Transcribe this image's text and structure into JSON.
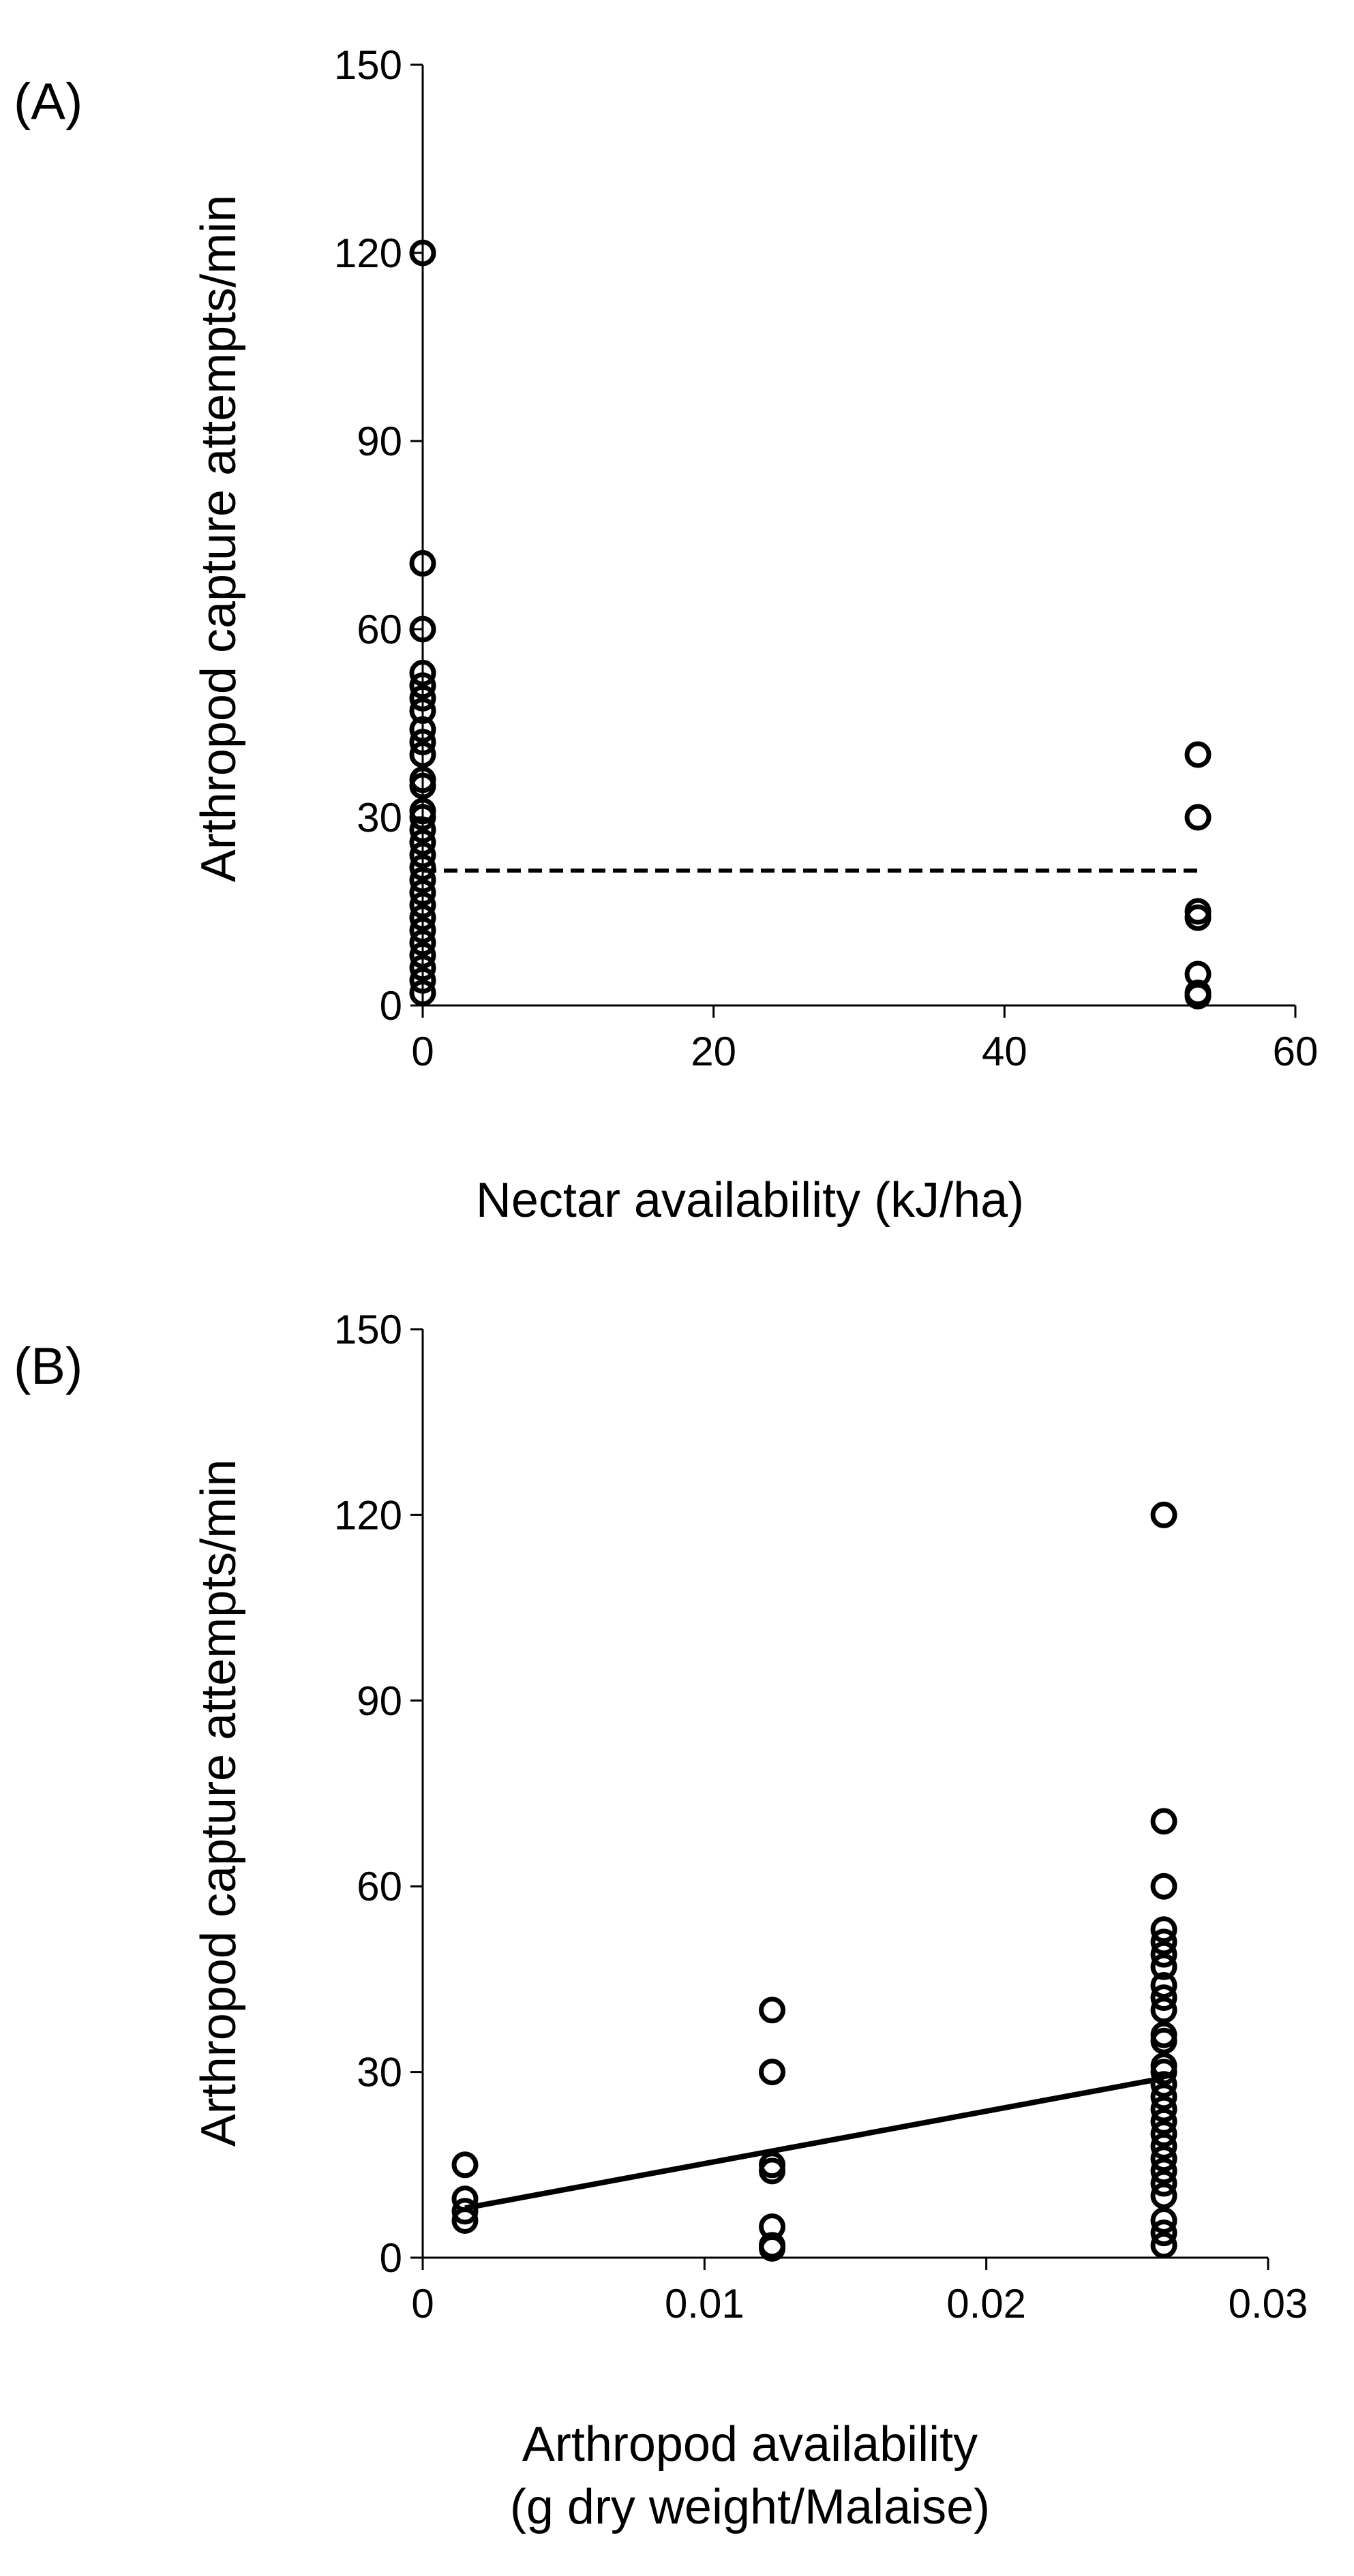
{
  "chart_data": [
    {
      "type": "scatter",
      "panel_label": "(A)",
      "xlabel": "Nectar availability (kJ/ha)",
      "ylabel": "Arthropod capture attempts/min",
      "xlim": [
        0,
        60
      ],
      "ylim": [
        0,
        150
      ],
      "xticks": [
        0,
        20,
        40,
        60
      ],
      "yticks": [
        0,
        30,
        60,
        90,
        120,
        150
      ],
      "grid": false,
      "series": [
        {
          "marker": "open-circle",
          "points": [
            {
              "x": 0,
              "y": 120
            },
            {
              "x": 0,
              "y": 70.5
            },
            {
              "x": 0,
              "y": 60
            },
            {
              "x": 0,
              "y": 53
            },
            {
              "x": 0,
              "y": 51
            },
            {
              "x": 0,
              "y": 49
            },
            {
              "x": 0,
              "y": 47
            },
            {
              "x": 0,
              "y": 44
            },
            {
              "x": 0,
              "y": 42
            },
            {
              "x": 0,
              "y": 40
            },
            {
              "x": 0,
              "y": 36
            },
            {
              "x": 0,
              "y": 35
            },
            {
              "x": 0,
              "y": 31
            },
            {
              "x": 0,
              "y": 30
            },
            {
              "x": 0,
              "y": 28
            },
            {
              "x": 0,
              "y": 26
            },
            {
              "x": 0,
              "y": 24
            },
            {
              "x": 0,
              "y": 22
            },
            {
              "x": 0,
              "y": 20
            },
            {
              "x": 0,
              "y": 18
            },
            {
              "x": 0,
              "y": 16
            },
            {
              "x": 0,
              "y": 14
            },
            {
              "x": 0,
              "y": 12
            },
            {
              "x": 0,
              "y": 10
            },
            {
              "x": 0,
              "y": 8
            },
            {
              "x": 0,
              "y": 6
            },
            {
              "x": 0,
              "y": 4
            },
            {
              "x": 0,
              "y": 2
            },
            {
              "x": 53.3,
              "y": 40
            },
            {
              "x": 53.3,
              "y": 30
            },
            {
              "x": 53.3,
              "y": 15
            },
            {
              "x": 53.3,
              "y": 14
            },
            {
              "x": 53.3,
              "y": 5
            },
            {
              "x": 53.3,
              "y": 2
            },
            {
              "x": 53.3,
              "y": 1.5
            }
          ]
        }
      ],
      "fit_line": {
        "style": "dashed",
        "points": [
          {
            "x": 0,
            "y": 21.5
          },
          {
            "x": 53.3,
            "y": 21.5
          }
        ]
      }
    },
    {
      "type": "scatter",
      "panel_label": "(B)",
      "xlabel": "Arthropod availability\n(g dry weight/Malaise)",
      "ylabel": "Arthropod capture attempts/min",
      "xlim": [
        0,
        0.03
      ],
      "ylim": [
        0,
        150
      ],
      "xticks": [
        0,
        0.01,
        0.02,
        0.03
      ],
      "yticks": [
        0,
        30,
        60,
        90,
        120,
        150
      ],
      "grid": false,
      "series": [
        {
          "marker": "open-circle",
          "points": [
            {
              "x": 0.0015,
              "y": 15
            },
            {
              "x": 0.0015,
              "y": 9.5
            },
            {
              "x": 0.0015,
              "y": 7.5
            },
            {
              "x": 0.0015,
              "y": 6
            },
            {
              "x": 0.0124,
              "y": 40
            },
            {
              "x": 0.0124,
              "y": 30
            },
            {
              "x": 0.0124,
              "y": 15
            },
            {
              "x": 0.0124,
              "y": 14
            },
            {
              "x": 0.0124,
              "y": 5
            },
            {
              "x": 0.0124,
              "y": 2
            },
            {
              "x": 0.0124,
              "y": 1.5
            },
            {
              "x": 0.0263,
              "y": 120
            },
            {
              "x": 0.0263,
              "y": 70.5
            },
            {
              "x": 0.0263,
              "y": 60
            },
            {
              "x": 0.0263,
              "y": 53
            },
            {
              "x": 0.0263,
              "y": 51
            },
            {
              "x": 0.0263,
              "y": 49
            },
            {
              "x": 0.0263,
              "y": 47
            },
            {
              "x": 0.0263,
              "y": 44
            },
            {
              "x": 0.0263,
              "y": 42
            },
            {
              "x": 0.0263,
              "y": 40
            },
            {
              "x": 0.0263,
              "y": 36
            },
            {
              "x": 0.0263,
              "y": 35
            },
            {
              "x": 0.0263,
              "y": 31
            },
            {
              "x": 0.0263,
              "y": 30
            },
            {
              "x": 0.0263,
              "y": 28
            },
            {
              "x": 0.0263,
              "y": 26
            },
            {
              "x": 0.0263,
              "y": 24
            },
            {
              "x": 0.0263,
              "y": 22
            },
            {
              "x": 0.0263,
              "y": 20
            },
            {
              "x": 0.0263,
              "y": 18
            },
            {
              "x": 0.0263,
              "y": 16
            },
            {
              "x": 0.0263,
              "y": 14
            },
            {
              "x": 0.0263,
              "y": 12
            },
            {
              "x": 0.0263,
              "y": 10
            },
            {
              "x": 0.0263,
              "y": 6
            },
            {
              "x": 0.0263,
              "y": 4
            },
            {
              "x": 0.0263,
              "y": 2
            }
          ]
        }
      ],
      "fit_line": {
        "style": "solid",
        "points": [
          {
            "x": 0.0015,
            "y": 8
          },
          {
            "x": 0.0263,
            "y": 29
          }
        ]
      }
    }
  ]
}
